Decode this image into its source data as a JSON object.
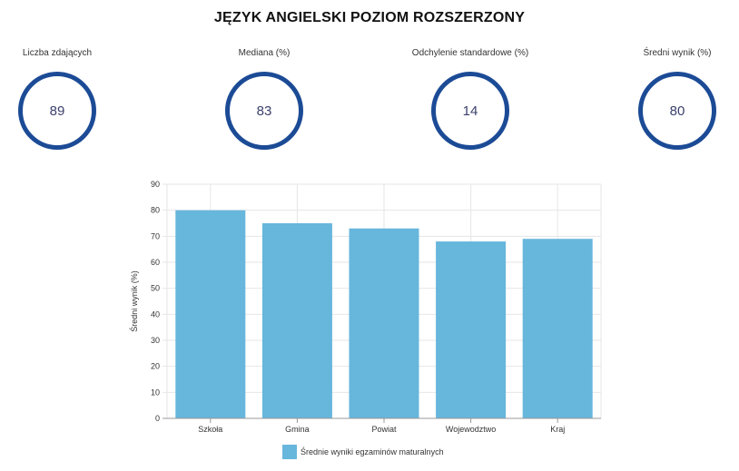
{
  "title": "JĘZYK ANGIELSKI POZIOM ROZSZERZONY",
  "stats": [
    {
      "label": "Liczba zdających",
      "value": "89"
    },
    {
      "label": "Mediana (%)",
      "value": "83"
    },
    {
      "label": "Odchylenie standardowe (%)",
      "value": "14"
    },
    {
      "label": "Średni wynik (%)",
      "value": "80"
    }
  ],
  "colors": {
    "ring": "#1c4b96",
    "bar": "#67b6dc",
    "grid": "#e6e6e6",
    "axis": "#999999"
  },
  "chart_data": {
    "type": "bar",
    "categories": [
      "Szkoła",
      "Gmina",
      "Powiat",
      "Wojewodztwo",
      "Kraj"
    ],
    "series": [
      {
        "name": "Średnie wyniki egzaminów maturalnych",
        "values": [
          80,
          75,
          73,
          68,
          69
        ]
      }
    ],
    "ylabel": "Średni wynik (%)",
    "xlabel": "",
    "ylim": [
      0,
      90
    ],
    "yticks": [
      0,
      10,
      20,
      30,
      40,
      50,
      60,
      70,
      80,
      90
    ],
    "grid": true,
    "legend_position": "bottom-center"
  }
}
